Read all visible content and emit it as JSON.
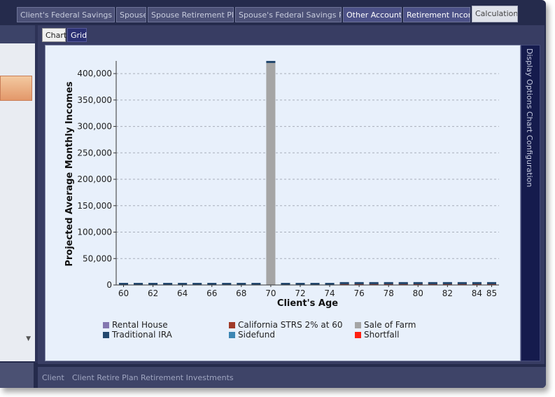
{
  "top_tabs": [
    {
      "label": "Client's Federal Savings Plan",
      "style": "dim"
    },
    {
      "label": "Spouse",
      "style": "dim"
    },
    {
      "label": "Spouse Retirement Plan",
      "style": "dim"
    },
    {
      "label": "Spouse's Federal Savings Plan",
      "style": "dim"
    },
    {
      "label": "Other Accounts",
      "style": "bright"
    },
    {
      "label": "Retirement Income",
      "style": "bright"
    },
    {
      "label": "Calculations",
      "style": "active"
    }
  ],
  "sub_tabs": {
    "chart": "Chart",
    "grid": "Grid"
  },
  "side_panel": {
    "display_options": "Display Options",
    "chart_configuration": "Chart Configuration"
  },
  "bottom_bar": {
    "items": [
      "Client",
      "Client Retire Plan",
      "Retirement Investments"
    ]
  },
  "colors": {
    "rental_house": "#8477b0",
    "california_strs": "#a03a28",
    "sale_of_farm": "#a5a5a5",
    "traditional_ira": "#23486e",
    "sidefund": "#3c86b3",
    "shortfall": "#ff2010"
  },
  "chart_data": {
    "type": "bar",
    "xlabel": "Client's Age",
    "ylabel": "Projected Average Monthly Incomes",
    "ylim": [
      0,
      420000
    ],
    "yticks": [
      0,
      50000,
      100000,
      150000,
      200000,
      250000,
      300000,
      350000,
      400000
    ],
    "ytick_labels": [
      "0",
      "50,000",
      "100,000",
      "150,000",
      "200,000",
      "250,000",
      "300,000",
      "350,000",
      "400,000"
    ],
    "x": [
      60,
      61,
      62,
      63,
      64,
      65,
      66,
      67,
      68,
      69,
      70,
      71,
      72,
      73,
      74,
      75,
      76,
      77,
      78,
      79,
      80,
      81,
      82,
      83,
      84,
      85
    ],
    "xtick_labels": [
      "60",
      "62",
      "64",
      "66",
      "68",
      "70",
      "72",
      "74",
      "76",
      "78",
      "80",
      "82",
      "84",
      "85"
    ],
    "grid": true,
    "legend_position": "bottom",
    "series": [
      {
        "name": "Rental House",
        "values": [
          0,
          0,
          0,
          0,
          0,
          0,
          0,
          0,
          0,
          0,
          0,
          0,
          0,
          0,
          0,
          0,
          0,
          0,
          0,
          0,
          0,
          0,
          0,
          0,
          0,
          0
        ]
      },
      {
        "name": "California STRS 2% at 60",
        "values": [
          0,
          0,
          0,
          0,
          0,
          0,
          0,
          0,
          0,
          0,
          0,
          0,
          0,
          0,
          0,
          1500,
          1500,
          1500,
          1500,
          1500,
          1500,
          1500,
          1500,
          1500,
          1500,
          1500
        ]
      },
      {
        "name": "Sale of Farm",
        "values": [
          0,
          0,
          0,
          0,
          0,
          0,
          0,
          0,
          0,
          0,
          420000,
          0,
          0,
          0,
          0,
          0,
          0,
          0,
          0,
          0,
          0,
          0,
          0,
          0,
          0,
          0
        ]
      },
      {
        "name": "Traditional IRA",
        "values": [
          1800,
          1800,
          1800,
          1800,
          1800,
          1800,
          1800,
          1800,
          1800,
          1800,
          1800,
          1800,
          1800,
          1800,
          1800,
          1200,
          1200,
          1200,
          1200,
          1200,
          1200,
          1200,
          1200,
          1200,
          1200,
          2000
        ]
      },
      {
        "name": "Sidefund",
        "values": [
          0,
          0,
          0,
          0,
          0,
          0,
          0,
          0,
          0,
          0,
          0,
          0,
          0,
          0,
          0,
          0,
          0,
          0,
          0,
          0,
          0,
          0,
          0,
          0,
          0,
          0
        ]
      },
      {
        "name": "Shortfall",
        "values": [
          0,
          0,
          0,
          0,
          0,
          0,
          0,
          0,
          0,
          0,
          0,
          0,
          0,
          0,
          0,
          0,
          0,
          0,
          0,
          0,
          0,
          0,
          0,
          0,
          0,
          0
        ]
      }
    ]
  }
}
